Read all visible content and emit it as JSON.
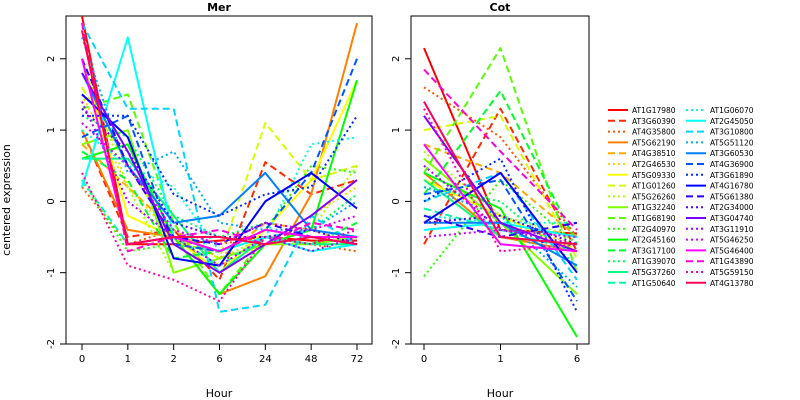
{
  "ylabel": "centered expression",
  "xlabel": "Hour",
  "chart_data": [
    {
      "type": "line",
      "title": "Mer",
      "x": [
        "0",
        "1",
        "2",
        "6",
        "24",
        "48",
        "72"
      ],
      "ylim": [
        -2,
        2.6
      ],
      "yticks": [
        "-2",
        "-1",
        "0",
        "1",
        "2"
      ],
      "series": [
        {
          "name": "AT1G17980",
          "color": "#ff0000",
          "dash": "solid",
          "values": [
            2.6,
            -0.6,
            -0.6,
            -0.55,
            -0.5,
            -0.55,
            -0.55
          ]
        },
        {
          "name": "AT3G60390",
          "color": "#ff2a00",
          "dash": "dashed",
          "values": [
            1.0,
            -0.5,
            -0.4,
            -1.1,
            0.55,
            0.1,
            0.3
          ]
        },
        {
          "name": "AT4G35800",
          "color": "#ff5500",
          "dash": "dotted",
          "values": [
            0.2,
            -0.6,
            -0.4,
            -0.6,
            -0.5,
            -0.6,
            -0.7
          ]
        },
        {
          "name": "AT5G62190",
          "color": "#ff8000",
          "dash": "solid",
          "values": [
            1.0,
            -0.4,
            -0.5,
            -1.3,
            -1.05,
            0.1,
            2.5
          ]
        },
        {
          "name": "AT4G38510",
          "color": "#ffaa00",
          "dash": "dashed",
          "values": [
            0.8,
            0.2,
            -0.4,
            -0.8,
            -0.3,
            -0.4,
            -0.6
          ]
        },
        {
          "name": "AT2G46530",
          "color": "#ffd500",
          "dash": "dotted",
          "values": [
            1.5,
            0.2,
            -0.5,
            -0.9,
            -0.6,
            -0.2,
            0.2
          ]
        },
        {
          "name": "AT5G09330",
          "color": "#ffff00",
          "dash": "solid",
          "values": [
            2.0,
            -0.2,
            -0.5,
            -1.0,
            -0.4,
            0.3,
            1.7
          ]
        },
        {
          "name": "AT1G01260",
          "color": "#d5ff00",
          "dash": "dashed",
          "values": [
            1.6,
            0.5,
            -0.5,
            -0.8,
            1.1,
            0.3,
            0.5
          ]
        },
        {
          "name": "AT5G26260",
          "color": "#aaff00",
          "dash": "dotted",
          "values": [
            2.0,
            0.2,
            -1.0,
            -0.8,
            -0.5,
            -0.4,
            0.5
          ]
        },
        {
          "name": "AT1G32240",
          "color": "#80ff00",
          "dash": "solid",
          "values": [
            0.8,
            1.0,
            -1.0,
            -0.8,
            -0.6,
            -0.6,
            -0.5
          ]
        },
        {
          "name": "AT1G68190",
          "color": "#55ff00",
          "dash": "dashed",
          "values": [
            1.3,
            1.5,
            -0.3,
            -1.3,
            -0.5,
            -0.6,
            -0.6
          ]
        },
        {
          "name": "AT2G40970",
          "color": "#2aff00",
          "dash": "dotted",
          "values": [
            0.3,
            -0.7,
            -0.6,
            -0.7,
            -0.4,
            0.5,
            0.4
          ]
        },
        {
          "name": "AT2G45160",
          "color": "#00ff00",
          "dash": "solid",
          "values": [
            0.6,
            0.8,
            -0.5,
            -1.3,
            -0.6,
            -0.4,
            1.7
          ]
        },
        {
          "name": "AT3G17100",
          "color": "#00ff2a",
          "dash": "dashed",
          "values": [
            0.7,
            0.3,
            -0.8,
            -0.7,
            -0.5,
            -0.6,
            -0.3
          ]
        },
        {
          "name": "AT1G39070",
          "color": "#00ff55",
          "dash": "dotted",
          "values": [
            1.2,
            0.9,
            -0.2,
            -0.5,
            -0.3,
            -0.4,
            0.1
          ]
        },
        {
          "name": "AT5G37260",
          "color": "#00ff80",
          "dash": "solid",
          "values": [
            0.6,
            0.6,
            -0.2,
            -1.0,
            -0.5,
            -0.6,
            -0.6
          ]
        },
        {
          "name": "AT1G50640",
          "color": "#00ffaa",
          "dash": "dashed",
          "values": [
            0.3,
            -0.6,
            -0.5,
            -0.9,
            -0.5,
            -0.4,
            -0.5
          ]
        },
        {
          "name": "AT1G06070",
          "color": "#00ffd5",
          "dash": "dotted",
          "values": [
            1.0,
            0.5,
            0.2,
            -0.7,
            -0.5,
            0.8,
            0.9
          ]
        },
        {
          "name": "AT2G45050",
          "color": "#00ffff",
          "dash": "solid",
          "values": [
            0.2,
            2.3,
            -0.5,
            -0.7,
            -0.5,
            -0.7,
            -0.6
          ]
        },
        {
          "name": "AT3G10800",
          "color": "#00d5ff",
          "dash": "dashed",
          "values": [
            2.5,
            1.3,
            1.3,
            -1.55,
            -1.45,
            -0.2,
            -0.6
          ]
        },
        {
          "name": "AT5G51120",
          "color": "#00aaff",
          "dash": "dotted",
          "values": [
            2.3,
            0.4,
            0.7,
            -0.3,
            -0.4,
            -0.4,
            0.0
          ]
        },
        {
          "name": "AT3G60530",
          "color": "#0080ff",
          "dash": "solid",
          "values": [
            1.8,
            0.5,
            -0.3,
            -0.2,
            0.4,
            -0.4,
            -0.5
          ]
        },
        {
          "name": "AT4G36900",
          "color": "#0055ff",
          "dash": "dashed",
          "values": [
            0.9,
            1.2,
            -0.6,
            -0.7,
            -0.4,
            0.4,
            2.0
          ]
        },
        {
          "name": "AT3G61890",
          "color": "#002aff",
          "dash": "dotted",
          "values": [
            1.2,
            1.2,
            0.1,
            -0.2,
            0.1,
            0.2,
            1.2
          ]
        },
        {
          "name": "AT4G16780",
          "color": "#0000ff",
          "dash": "solid",
          "values": [
            1.5,
            0.9,
            -0.8,
            -0.9,
            0.0,
            0.4,
            -0.1
          ]
        },
        {
          "name": "AT5G61380",
          "color": "#2a00ff",
          "dash": "dashed",
          "values": [
            2.0,
            0.5,
            -0.5,
            -0.6,
            -0.3,
            -0.5,
            -0.6
          ]
        },
        {
          "name": "AT2G34000",
          "color": "#5500ff",
          "dash": "dotted",
          "values": [
            1.3,
            0.7,
            -0.3,
            -0.5,
            -0.5,
            -0.4,
            -0.6
          ]
        },
        {
          "name": "AT3G04740",
          "color": "#8000ff",
          "dash": "solid",
          "values": [
            1.8,
            0.7,
            -0.6,
            -1.0,
            -0.6,
            -0.2,
            0.3
          ]
        },
        {
          "name": "AT3G11910",
          "color": "#aa00ff",
          "dash": "dotted",
          "values": [
            1.4,
            0.0,
            -0.5,
            -0.9,
            -0.5,
            -0.7,
            -0.5
          ]
        },
        {
          "name": "AT5G46250",
          "color": "#d500ff",
          "dash": "dotted",
          "values": [
            1.1,
            0.5,
            -0.4,
            -0.6,
            -0.3,
            -0.4,
            -0.2
          ]
        },
        {
          "name": "AT5G46400",
          "color": "#ff00ff",
          "dash": "solid",
          "values": [
            2.0,
            -0.6,
            -0.5,
            -0.7,
            -0.4,
            -0.5,
            -0.5
          ]
        },
        {
          "name": "AT1G43890",
          "color": "#ff00d5",
          "dash": "dashed",
          "values": [
            2.5,
            -0.7,
            -0.5,
            -0.4,
            -0.6,
            -0.3,
            -0.4
          ]
        },
        {
          "name": "AT5G59150",
          "color": "#ff00aa",
          "dash": "dotted",
          "values": [
            0.4,
            -0.9,
            -1.1,
            -1.4,
            -0.5,
            -0.6,
            -0.4
          ]
        },
        {
          "name": "AT4G13780",
          "color": "#ff0055",
          "dash": "solid",
          "values": [
            2.4,
            -0.6,
            -0.5,
            -0.5,
            -0.6,
            -0.5,
            -0.6
          ]
        }
      ]
    },
    {
      "type": "line",
      "title": "Cot",
      "x": [
        "0",
        "1",
        "6"
      ],
      "ylim": [
        -2,
        2.6
      ],
      "yticks": [
        "-2",
        "-1",
        "0",
        "1",
        "2"
      ],
      "series": [
        {
          "name": "AT1G17980",
          "color": "#ff0000",
          "dash": "solid",
          "values": [
            2.15,
            -0.4,
            -0.45
          ]
        },
        {
          "name": "AT3G60390",
          "color": "#ff2a00",
          "dash": "dashed",
          "values": [
            -0.6,
            1.3,
            -0.7
          ]
        },
        {
          "name": "AT4G35800",
          "color": "#ff5500",
          "dash": "dotted",
          "values": [
            1.6,
            0.9,
            -0.5
          ]
        },
        {
          "name": "AT5G62190",
          "color": "#ff8000",
          "dash": "solid",
          "values": [
            0.4,
            -0.5,
            -0.7
          ]
        },
        {
          "name": "AT4G38510",
          "color": "#ffaa00",
          "dash": "dashed",
          "values": [
            0.8,
            0.4,
            -0.5
          ]
        },
        {
          "name": "AT2G46530",
          "color": "#ffd500",
          "dash": "dotted",
          "values": [
            0.6,
            -0.3,
            -0.6
          ]
        },
        {
          "name": "AT5G09330",
          "color": "#ffff00",
          "dash": "solid",
          "values": [
            0.3,
            -0.2,
            -0.7
          ]
        },
        {
          "name": "AT1G01260",
          "color": "#d5ff00",
          "dash": "dashed",
          "values": [
            1.0,
            1.2,
            -0.8
          ]
        },
        {
          "name": "AT5G26260",
          "color": "#aaff00",
          "dash": "dotted",
          "values": [
            0.7,
            -0.2,
            -0.5
          ]
        },
        {
          "name": "AT1G32240",
          "color": "#80ff00",
          "dash": "solid",
          "values": [
            0.6,
            -0.3,
            -1.3
          ]
        },
        {
          "name": "AT1G68190",
          "color": "#55ff00",
          "dash": "dashed",
          "values": [
            0.4,
            2.15,
            -1.0
          ]
        },
        {
          "name": "AT2G40970",
          "color": "#2aff00",
          "dash": "dotted",
          "values": [
            -1.05,
            0.3,
            -0.6
          ]
        },
        {
          "name": "AT2G45160",
          "color": "#00ff00",
          "dash": "solid",
          "values": [
            0.4,
            -0.1,
            -1.9
          ]
        },
        {
          "name": "AT3G17100",
          "color": "#00ff2a",
          "dash": "dashed",
          "values": [
            0.1,
            1.55,
            -0.6
          ]
        },
        {
          "name": "AT1G39070",
          "color": "#00ff55",
          "dash": "dotted",
          "values": [
            0.2,
            0.0,
            -0.9
          ]
        },
        {
          "name": "AT5G37260",
          "color": "#00ff80",
          "dash": "solid",
          "values": [
            0.3,
            -0.5,
            -0.6
          ]
        },
        {
          "name": "AT1G50640",
          "color": "#00ffaa",
          "dash": "dashed",
          "values": [
            -0.1,
            -0.4,
            -0.7
          ]
        },
        {
          "name": "AT1G06070",
          "color": "#00ffd5",
          "dash": "dotted",
          "values": [
            -0.2,
            -0.3,
            -0.3
          ]
        },
        {
          "name": "AT2G45050",
          "color": "#00ffff",
          "dash": "solid",
          "values": [
            -0.4,
            -0.3,
            -0.5
          ]
        },
        {
          "name": "AT3G10800",
          "color": "#00d5ff",
          "dash": "dashed",
          "values": [
            0.0,
            0.4,
            -1.1
          ]
        },
        {
          "name": "AT5G51120",
          "color": "#00aaff",
          "dash": "dotted",
          "values": [
            0.2,
            -0.2,
            -1.2
          ]
        },
        {
          "name": "AT3G60530",
          "color": "#0080ff",
          "dash": "solid",
          "values": [
            -0.3,
            -0.3,
            -0.9
          ]
        },
        {
          "name": "AT4G36900",
          "color": "#0055ff",
          "dash": "dashed",
          "values": [
            0.1,
            0.3,
            -1.4
          ]
        },
        {
          "name": "AT3G61890",
          "color": "#002aff",
          "dash": "dotted",
          "values": [
            0.0,
            0.6,
            -1.55
          ]
        },
        {
          "name": "AT4G16780",
          "color": "#0000ff",
          "dash": "solid",
          "values": [
            -0.3,
            0.4,
            -1.0
          ]
        },
        {
          "name": "AT5G61380",
          "color": "#2a00ff",
          "dash": "dashed",
          "values": [
            -0.2,
            -0.5,
            -0.3
          ]
        },
        {
          "name": "AT2G34000",
          "color": "#5500ff",
          "dash": "dotted",
          "values": [
            -0.3,
            -0.2,
            -0.6
          ]
        },
        {
          "name": "AT3G04740",
          "color": "#8000ff",
          "dash": "solid",
          "values": [
            1.2,
            -0.3,
            -0.7
          ]
        },
        {
          "name": "AT3G11910",
          "color": "#aa00ff",
          "dash": "dotted",
          "values": [
            0.5,
            -0.4,
            -0.6
          ]
        },
        {
          "name": "AT5G46250",
          "color": "#d500ff",
          "dash": "dotted",
          "values": [
            -0.5,
            -0.4,
            -0.5
          ]
        },
        {
          "name": "AT5G46400",
          "color": "#ff00ff",
          "dash": "solid",
          "values": [
            0.8,
            -0.6,
            -0.7
          ]
        },
        {
          "name": "AT1G43890",
          "color": "#ff00d5",
          "dash": "dashed",
          "values": [
            1.85,
            0.7,
            -0.4
          ]
        },
        {
          "name": "AT5G59150",
          "color": "#ff00aa",
          "dash": "dotted",
          "values": [
            1.3,
            -0.7,
            -0.6
          ]
        },
        {
          "name": "AT4G13780",
          "color": "#ff0055",
          "dash": "solid",
          "values": [
            1.4,
            -0.5,
            -0.6
          ]
        }
      ]
    }
  ]
}
